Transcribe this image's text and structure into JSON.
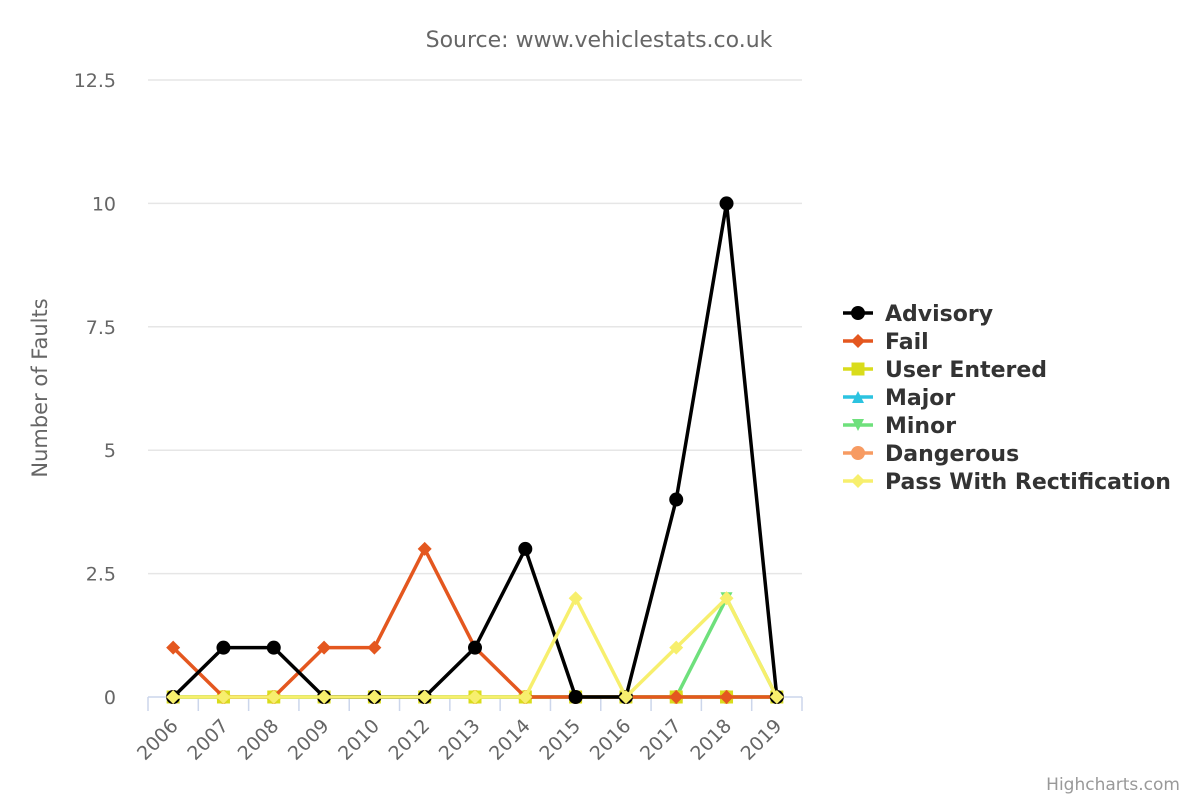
{
  "chart_data": {
    "type": "line",
    "subtitle": "Source: www.vehiclestats.co.uk",
    "ylabel": "Number of Faults",
    "xlabel": "",
    "categories": [
      "2006",
      "2007",
      "2008",
      "2009",
      "2010",
      "2012",
      "2013",
      "2014",
      "2015",
      "2016",
      "2017",
      "2018",
      "2019"
    ],
    "ylim": [
      0,
      12.5
    ],
    "yticks": [
      "0",
      "2.5",
      "5",
      "7.5",
      "10",
      "12.5"
    ],
    "grid": true,
    "legend_position": "right",
    "series": [
      {
        "name": "Advisory",
        "color": "#000000",
        "marker": "circle",
        "values": [
          0,
          1,
          1,
          0,
          0,
          0,
          1,
          3,
          0,
          0,
          4,
          10,
          0
        ]
      },
      {
        "name": "Fail",
        "color": "#e4571f",
        "marker": "diamond",
        "values": [
          1,
          0,
          0,
          1,
          1,
          3,
          1,
          0,
          0,
          0,
          0,
          0,
          0
        ]
      },
      {
        "name": "User Entered",
        "color": "#d9dc1b",
        "marker": "square",
        "values": [
          0,
          0,
          0,
          0,
          0,
          0,
          0,
          0,
          0,
          0,
          0,
          0,
          0
        ]
      },
      {
        "name": "Major",
        "color": "#2cc3e0",
        "marker": "triangle",
        "values": [
          0,
          0,
          0,
          0,
          0,
          0,
          0,
          0,
          0,
          0,
          0,
          0,
          0
        ]
      },
      {
        "name": "Minor",
        "color": "#6ee07c",
        "marker": "triangle-down",
        "values": [
          0,
          0,
          0,
          0,
          0,
          0,
          0,
          0,
          0,
          0,
          0,
          2,
          0
        ]
      },
      {
        "name": "Dangerous",
        "color": "#f79b62",
        "marker": "circle",
        "values": [
          0,
          0,
          0,
          0,
          0,
          0,
          0,
          0,
          0,
          0,
          0,
          0,
          0
        ]
      },
      {
        "name": "Pass With Rectification",
        "color": "#f7ef6d",
        "marker": "diamond",
        "values": [
          0,
          0,
          0,
          0,
          0,
          0,
          0,
          0,
          2,
          0,
          1,
          2,
          0
        ]
      }
    ]
  },
  "credits": "Highcharts.com"
}
